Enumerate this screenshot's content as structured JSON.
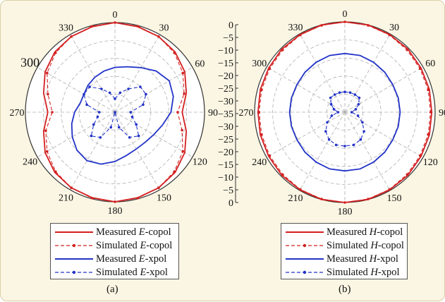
{
  "chart_data": [
    {
      "type": "polar",
      "caption": "(a)",
      "angle_labels": [
        "0",
        "30",
        "60",
        "90",
        "120",
        "150",
        "180",
        "210",
        "240",
        "270",
        "300",
        "330"
      ],
      "radial_range_db": [
        -40,
        0
      ],
      "grid": true,
      "series": [
        {
          "name": "Measured E-copol",
          "label_prefix": "Measured ",
          "label_italic": "E",
          "label_suffix": "-copol",
          "color": "#d42020",
          "style": "solid",
          "markers": false,
          "angles": [
            0,
            15,
            30,
            45,
            60,
            75,
            90,
            105,
            120,
            135,
            150,
            165,
            180,
            195,
            210,
            225,
            240,
            255,
            270,
            285,
            300,
            315,
            330,
            345
          ],
          "values": [
            0,
            -0.5,
            -1,
            -2,
            -4,
            -7,
            -10,
            -7,
            -4,
            -2,
            -1,
            -0.5,
            0,
            -0.5,
            -1,
            -2,
            -4,
            -7,
            -10,
            -7,
            -4,
            -2,
            -1,
            -0.5
          ]
        },
        {
          "name": "Simulated E-copol",
          "label_prefix": "Simulated ",
          "label_italic": "E",
          "label_suffix": "-copol",
          "color": "#d42020",
          "style": "dashed",
          "markers": true,
          "angles": [
            0,
            15,
            30,
            45,
            60,
            75,
            90,
            105,
            120,
            135,
            150,
            165,
            180,
            195,
            210,
            225,
            240,
            255,
            270,
            285,
            300,
            315,
            330,
            345
          ],
          "values": [
            0,
            -0.3,
            -1,
            -2.5,
            -5,
            -8,
            -12,
            -9,
            -5,
            -2.5,
            -1,
            -0.3,
            0,
            -0.3,
            -1,
            -2.5,
            -5,
            -8,
            -12,
            -9,
            -5,
            -2.5,
            -1,
            -0.3
          ]
        },
        {
          "name": "Measured E-xpol",
          "label_prefix": "Measured ",
          "label_italic": "E",
          "label_suffix": "-xpol",
          "color": "#2233c8",
          "style": "solid",
          "markers": false,
          "angles": [
            0,
            15,
            30,
            45,
            60,
            75,
            90,
            105,
            120,
            135,
            150,
            165,
            180,
            195,
            210,
            225,
            240,
            255,
            270,
            285,
            300,
            315,
            330,
            345
          ],
          "values": [
            -20,
            -19,
            -17,
            -14,
            -12,
            -13,
            -15,
            -18,
            -20,
            -21,
            -21,
            -20,
            -18,
            -16,
            -15,
            -16,
            -18,
            -20,
            -22,
            -24,
            -24,
            -23,
            -22,
            -21
          ]
        },
        {
          "name": "Simulated E-xpol",
          "label_prefix": "Simulated ",
          "label_italic": "E",
          "label_suffix": "-xpol",
          "color": "#2233c8",
          "style": "dashed",
          "markers": true,
          "angles": [
            0,
            15,
            30,
            45,
            60,
            75,
            90,
            105,
            120,
            135,
            150,
            165,
            180,
            195,
            210,
            225,
            240,
            255,
            270,
            285,
            300,
            315,
            330,
            345
          ],
          "values": [
            -34,
            -31,
            -28,
            -24,
            -24,
            -27,
            -33,
            -32,
            -29,
            -25,
            -27,
            -33,
            -40,
            -33,
            -27,
            -25,
            -29,
            -32,
            -33,
            -27,
            -24,
            -24,
            -28,
            -31
          ]
        }
      ]
    },
    {
      "type": "polar",
      "caption": "(b)",
      "angle_labels": [
        "0",
        "30",
        "60",
        "90",
        "120",
        "150",
        "180",
        "210",
        "240",
        "270",
        "300",
        "330"
      ],
      "radial_range_db": [
        -40,
        0
      ],
      "grid": true,
      "series": [
        {
          "name": "Measured H-copol",
          "label_prefix": "Measured ",
          "label_italic": "H",
          "label_suffix": "-copol",
          "color": "#d42020",
          "style": "solid",
          "markers": false,
          "angles": [
            0,
            15,
            30,
            45,
            60,
            75,
            90,
            105,
            120,
            135,
            150,
            165,
            180,
            195,
            210,
            225,
            240,
            255,
            270,
            285,
            300,
            315,
            330,
            345
          ],
          "values": [
            0,
            0,
            -0.3,
            -0.5,
            -1,
            -1.2,
            -1.5,
            -1.2,
            -1,
            -0.5,
            -0.3,
            0,
            0,
            0,
            -0.3,
            -0.5,
            -1,
            -1.2,
            -1.5,
            -1.2,
            -1,
            -0.5,
            -0.3,
            0
          ]
        },
        {
          "name": "Simulated H-copol",
          "label_prefix": "Simulated ",
          "label_italic": "H",
          "label_suffix": "-copol",
          "color": "#d42020",
          "style": "dashed",
          "markers": true,
          "angles": [
            0,
            15,
            30,
            45,
            60,
            75,
            90,
            105,
            120,
            135,
            150,
            165,
            180,
            195,
            210,
            225,
            240,
            255,
            270,
            285,
            300,
            315,
            330,
            345
          ],
          "values": [
            0,
            -0.2,
            -0.5,
            -1,
            -1.5,
            -1.8,
            -2,
            -1.8,
            -1.5,
            -1,
            -0.5,
            -0.2,
            0,
            -0.2,
            -0.5,
            -1,
            -1.5,
            -1.8,
            -2,
            -1.8,
            -1.5,
            -1,
            -0.5,
            -0.2
          ]
        },
        {
          "name": "Measured H-xpol",
          "label_prefix": "Measured ",
          "label_italic": "H",
          "label_suffix": "-xpol",
          "color": "#2233c8",
          "style": "solid",
          "markers": false,
          "angles": [
            0,
            15,
            30,
            45,
            60,
            75,
            90,
            105,
            120,
            135,
            150,
            165,
            180,
            195,
            210,
            225,
            240,
            255,
            270,
            285,
            300,
            315,
            330,
            345
          ],
          "values": [
            -14,
            -14,
            -14.5,
            -15,
            -15.5,
            -15.5,
            -15.5,
            -15.5,
            -15.5,
            -15,
            -14.5,
            -14,
            -14,
            -14,
            -14.5,
            -15,
            -15.5,
            -15.5,
            -15.5,
            -15.5,
            -15.5,
            -15,
            -14.5,
            -14
          ]
        },
        {
          "name": "Simulated H-xpol",
          "label_prefix": "Simulated ",
          "label_italic": "H",
          "label_suffix": "-xpol",
          "color": "#2233c8",
          "style": "dashed",
          "markers": true,
          "angles": [
            0,
            15,
            30,
            45,
            60,
            75,
            90,
            105,
            120,
            135,
            150,
            165,
            180,
            195,
            210,
            225,
            240,
            255,
            270,
            285,
            300,
            315,
            330,
            345
          ],
          "values": [
            -31,
            -31,
            -31,
            -31,
            -33,
            -35,
            -37,
            -34,
            -31,
            -28,
            -26,
            -25,
            -25,
            -25,
            -26,
            -28,
            -31,
            -34,
            -37,
            -35,
            -33,
            -31,
            -31,
            -31
          ]
        }
      ]
    }
  ],
  "radial_scale": {
    "tick_labels": [
      "0",
      "−5",
      "−10",
      "−15",
      "−20",
      "−25",
      "−30",
      "−35",
      "−30",
      "−25",
      "−20",
      "−15",
      "−10",
      "−5",
      "0"
    ]
  }
}
